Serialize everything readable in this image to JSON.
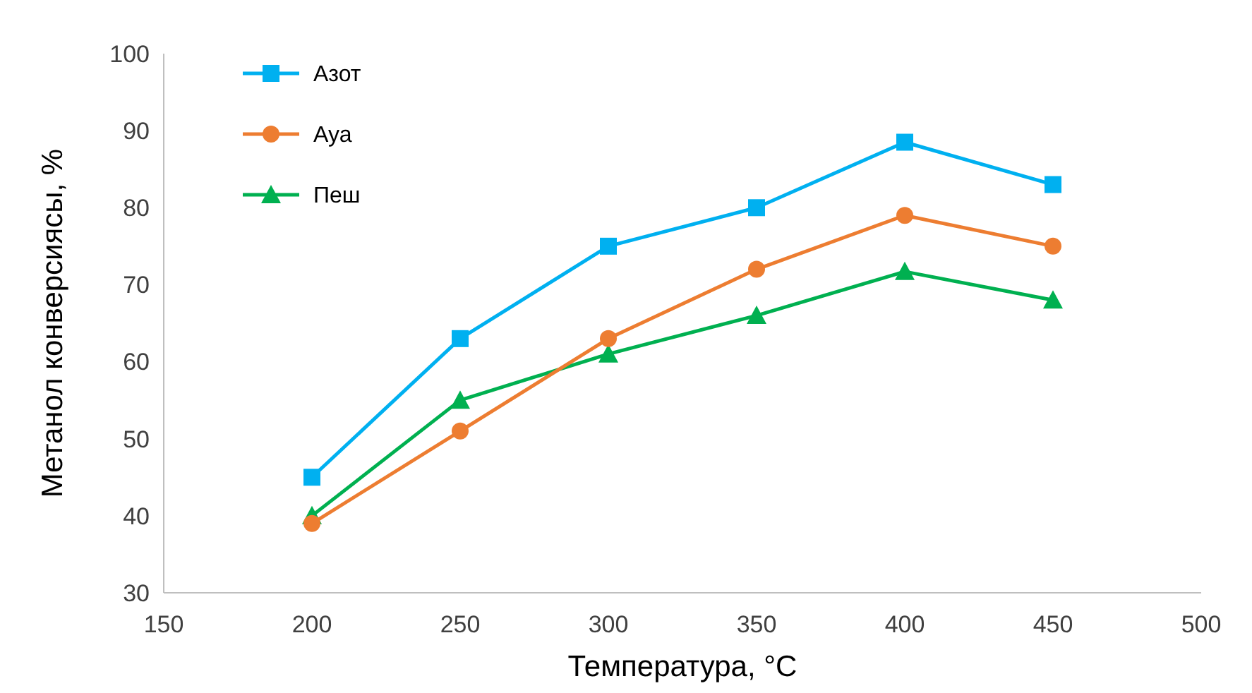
{
  "chart_data": {
    "type": "line",
    "xlabel": "Температура, °C",
    "ylabel": "Метанол конверсиясы, %",
    "x": [
      200,
      250,
      300,
      350,
      400,
      450
    ],
    "series": [
      {
        "name": "Азот",
        "color": "#00b0f0",
        "marker": "square",
        "values": [
          45,
          63,
          75,
          80,
          88.5,
          83
        ]
      },
      {
        "name": "Ауа",
        "color": "#ed7d31",
        "marker": "circle",
        "values": [
          39,
          51,
          63,
          72,
          79,
          75
        ]
      },
      {
        "name": "Пеш",
        "color": "#00b050",
        "marker": "triangle",
        "values": [
          40,
          55,
          61,
          66,
          71.7,
          68
        ]
      }
    ],
    "xlim": [
      150,
      500
    ],
    "xticks": [
      150,
      200,
      250,
      300,
      350,
      400,
      450,
      500
    ],
    "ylim": [
      30,
      100
    ],
    "yticks": [
      30,
      40,
      50,
      60,
      70,
      80,
      90,
      100
    ],
    "grid": false,
    "legend": "top left"
  }
}
